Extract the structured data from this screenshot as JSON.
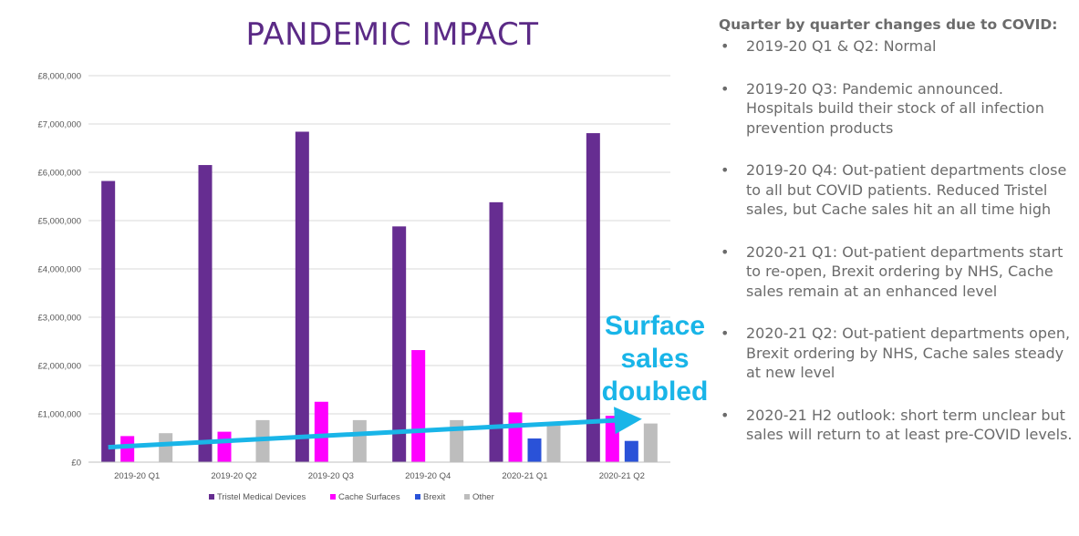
{
  "title": "PANDEMIC IMPACT",
  "annotation": [
    "Surface",
    "sales",
    "doubled"
  ],
  "annotation_color": "#19b5e8",
  "panel": {
    "heading": "Quarter by quarter changes due to COVID:",
    "items": [
      "2019-20 Q1 & Q2: Normal",
      "2019-20 Q3: Pandemic announced. Hospitals build their stock of all infection prevention products",
      "2019-20 Q4: Out-patient departments close to all but COVID patients.  Reduced Tristel sales, but Cache sales hit an all time high",
      "2020-21 Q1: Out-patient departments start to re-open, Brexit ordering by NHS, Cache sales remain at an enhanced level",
      "2020-21 Q2: Out-patient departments open, Brexit ordering by NHS, Cache sales steady at new level",
      "2020-21 H2 outlook: short term unclear but sales will return to at least pre-COVID levels."
    ]
  },
  "chart_data": {
    "type": "bar",
    "title": "PANDEMIC IMPACT",
    "categories": [
      "2019-20 Q1",
      "2019-20 Q2",
      "2019-20 Q3",
      "2019-20 Q4",
      "2020-21 Q1",
      "2020-21 Q2"
    ],
    "series": [
      {
        "name": "Tristel Medical Devices",
        "color": "#662d91",
        "values": [
          5820000,
          6150000,
          6840000,
          4880000,
          5380000,
          6810000
        ]
      },
      {
        "name": "Cache Surfaces",
        "color": "#ff00ff",
        "values": [
          540000,
          630000,
          1250000,
          2320000,
          1030000,
          960000
        ]
      },
      {
        "name": "Brexit",
        "color": "#2a52d8",
        "values": [
          0,
          0,
          0,
          0,
          490000,
          440000
        ]
      },
      {
        "name": "Other",
        "color": "#bdbdbd",
        "values": [
          600000,
          870000,
          870000,
          870000,
          800000,
          800000
        ]
      }
    ],
    "ylim": [
      0,
      8000000
    ],
    "yticks": [
      0,
      1000000,
      2000000,
      3000000,
      4000000,
      5000000,
      6000000,
      7000000,
      8000000
    ],
    "ytick_labels": [
      "£0",
      "£1,000,000",
      "£2,000,000",
      "£3,000,000",
      "£4,000,000",
      "£5,000,000",
      "£6,000,000",
      "£7,000,000",
      "£8,000,000"
    ],
    "grid": true,
    "legend": "bottom",
    "trend_arrow": {
      "from": {
        "category": "2019-20 Q1",
        "value": 310000
      },
      "to": {
        "category": "2020-21 Q2",
        "value": 880000
      }
    }
  }
}
